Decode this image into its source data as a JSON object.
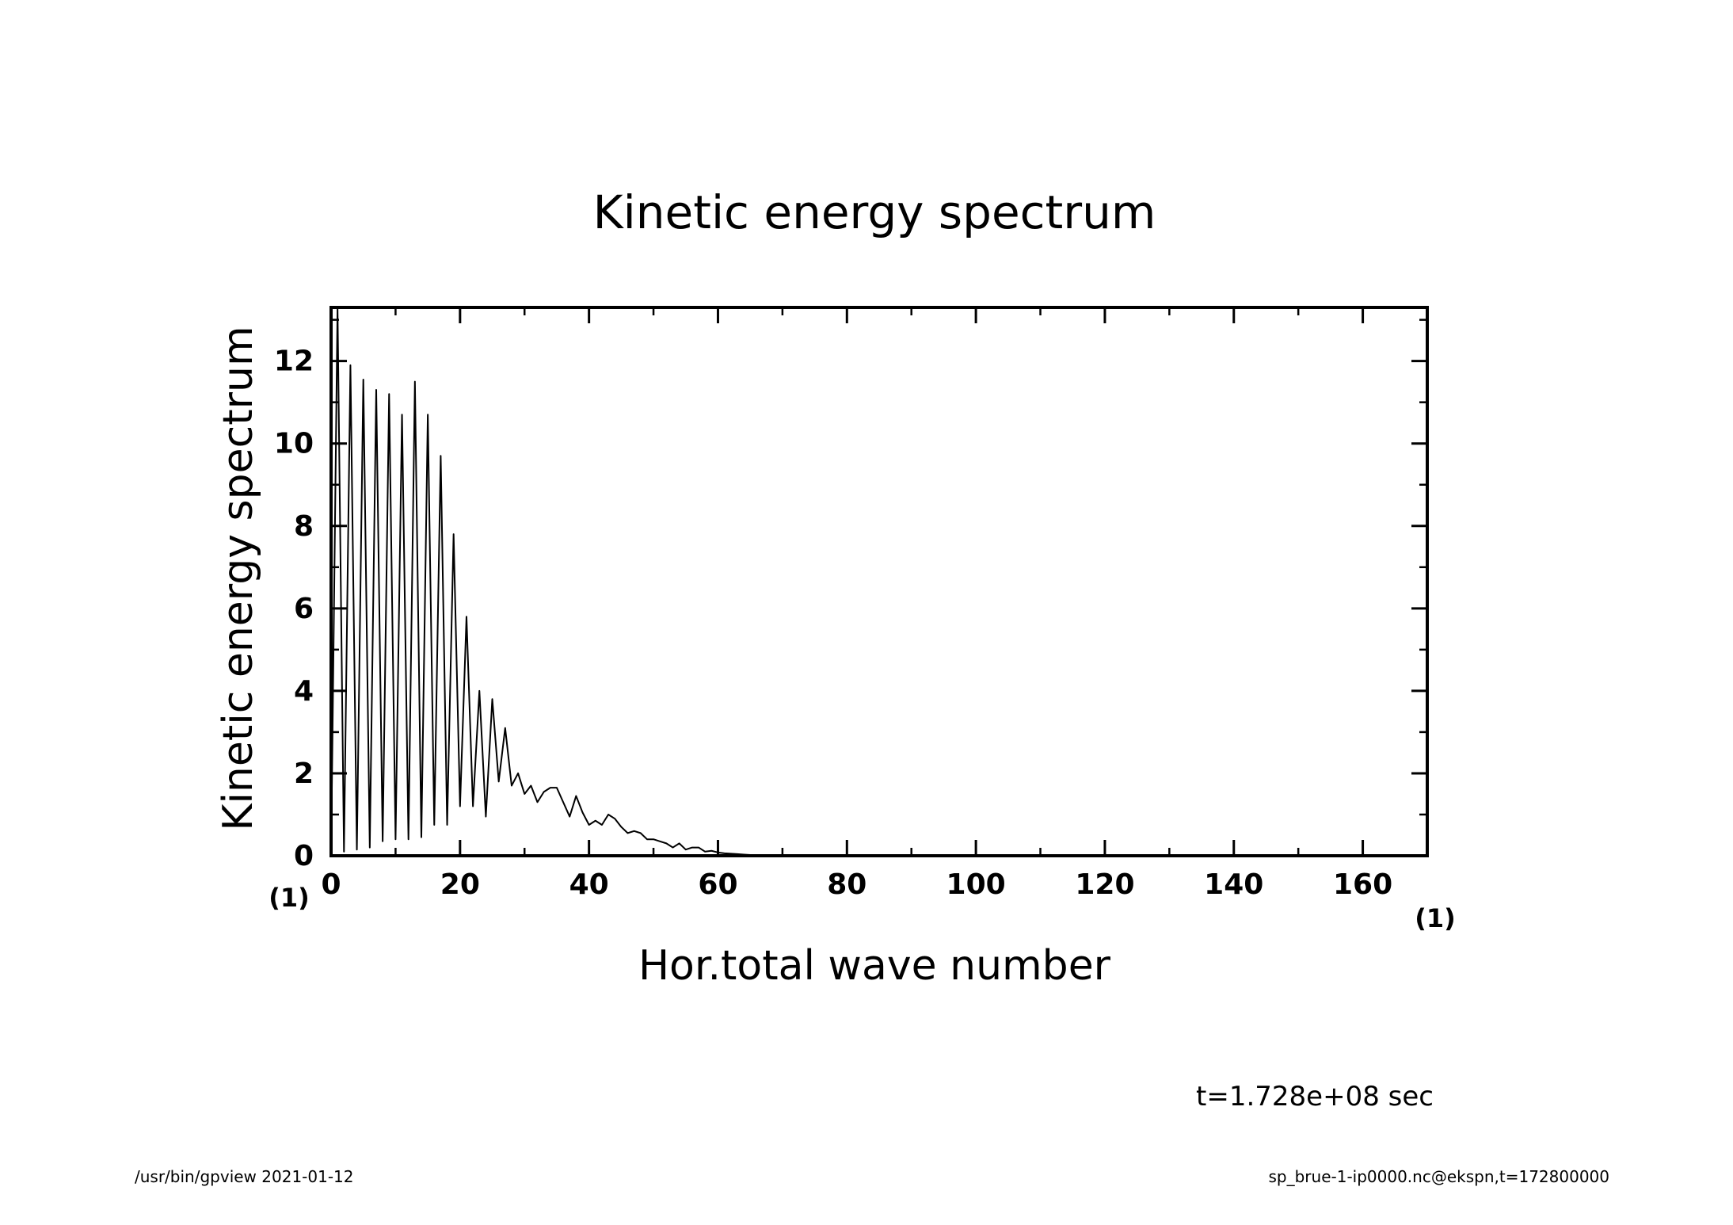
{
  "chart_data": {
    "type": "line",
    "title": "Kinetic energy spectrum",
    "xlabel": "Hor.total wave number",
    "ylabel": "Kinetic energy spectrum",
    "x_unit": "(1)",
    "y_unit": "(1)",
    "xlim": [
      0,
      170
    ],
    "ylim": [
      0,
      13.3
    ],
    "x_ticks": [
      0,
      20,
      40,
      60,
      80,
      100,
      120,
      140,
      160
    ],
    "y_ticks": [
      0,
      2,
      4,
      6,
      8,
      10,
      12
    ],
    "x_tick_labels": [
      "0",
      "20",
      "40",
      "60",
      "80",
      "100",
      "120",
      "140",
      "160"
    ],
    "y_tick_labels": [
      "0",
      "2",
      "4",
      "6",
      "8",
      "10",
      "12"
    ],
    "grid": false,
    "series": [
      {
        "x": [
          0,
          1,
          2,
          3,
          4,
          5,
          6,
          7,
          8,
          9,
          10,
          11,
          12,
          13,
          14,
          15,
          16,
          17,
          18,
          19,
          20,
          21,
          22,
          23,
          24,
          25,
          26,
          27,
          28,
          29,
          30,
          31,
          32,
          33,
          34,
          35,
          36,
          37,
          38,
          39,
          40,
          41,
          42,
          43,
          44,
          45,
          46,
          47,
          48,
          49,
          50,
          51,
          52,
          53,
          54,
          55,
          56,
          57,
          58,
          59,
          60,
          61,
          62,
          63,
          64,
          65,
          66,
          67,
          68,
          69,
          70,
          75,
          80,
          90,
          100,
          110,
          120,
          130,
          140,
          150,
          160,
          170
        ],
        "y": [
          0.0,
          13.3,
          0.1,
          11.9,
          0.15,
          11.55,
          0.2,
          11.3,
          0.35,
          11.2,
          0.4,
          10.7,
          0.4,
          11.5,
          0.45,
          10.7,
          0.75,
          9.7,
          0.75,
          7.8,
          1.2,
          5.8,
          1.2,
          4.0,
          0.95,
          3.8,
          1.8,
          3.1,
          1.7,
          2.0,
          1.5,
          1.7,
          1.3,
          1.55,
          1.65,
          1.65,
          1.3,
          0.95,
          1.45,
          1.05,
          0.75,
          0.85,
          0.75,
          1.0,
          0.9,
          0.7,
          0.55,
          0.6,
          0.55,
          0.4,
          0.4,
          0.35,
          0.3,
          0.2,
          0.3,
          0.15,
          0.2,
          0.2,
          0.1,
          0.12,
          0.08,
          0.06,
          0.05,
          0.04,
          0.03,
          0.02,
          0.015,
          0.01,
          0.008,
          0.005,
          0.004,
          0.002,
          0.001,
          0.0,
          0.0,
          0.0,
          0.0,
          0.0,
          0.0,
          0.0,
          0.0,
          0.0
        ]
      }
    ]
  },
  "annotations": {
    "time_label": "t=1.728e+08 sec",
    "footer_left": "/usr/bin/gpview   2021-01-12",
    "footer_right": "sp_brue-1-ip0000.nc@ekspn,t=172800000"
  }
}
